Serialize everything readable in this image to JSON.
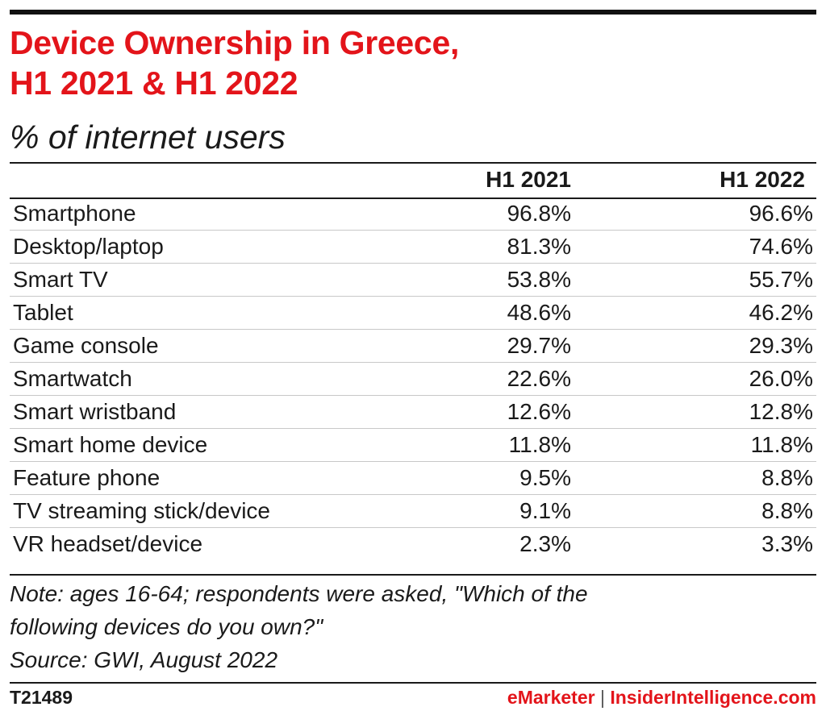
{
  "chart_data": {
    "type": "table",
    "title_line1": "Device Ownership in Greece,",
    "title_line2": "H1 2021 & H1 2022",
    "subtitle": "% of internet users",
    "columns": [
      "",
      "H1 2021",
      "H1 2022"
    ],
    "rows": [
      {
        "label": "Smartphone",
        "h1_2021": "96.8%",
        "h1_2022": "96.6%"
      },
      {
        "label": "Desktop/laptop",
        "h1_2021": "81.3%",
        "h1_2022": "74.6%"
      },
      {
        "label": "Smart TV",
        "h1_2021": "53.8%",
        "h1_2022": "55.7%"
      },
      {
        "label": "Tablet",
        "h1_2021": "48.6%",
        "h1_2022": "46.2%"
      },
      {
        "label": "Game console",
        "h1_2021": "29.7%",
        "h1_2022": "29.3%"
      },
      {
        "label": "Smartwatch",
        "h1_2021": "22.6%",
        "h1_2022": "26.0%"
      },
      {
        "label": "Smart wristband",
        "h1_2021": "12.6%",
        "h1_2022": "12.8%"
      },
      {
        "label": "Smart home device",
        "h1_2021": "11.8%",
        "h1_2022": "11.8%"
      },
      {
        "label": "Feature phone",
        "h1_2021": "9.5%",
        "h1_2022": "8.8%"
      },
      {
        "label": "TV streaming stick/device",
        "h1_2021": "9.1%",
        "h1_2022": "8.8%"
      },
      {
        "label": "VR headset/device",
        "h1_2021": "2.3%",
        "h1_2022": "3.3%"
      }
    ],
    "note_line1": "Note: ages 16-64; respondents were asked, \"Which of the",
    "note_line2": "following devices do you own?\"",
    "source": "Source: GWI, August 2022"
  },
  "footer": {
    "chart_id": "T21489",
    "brand_emarketer": "eMarketer",
    "brand_separator": "|",
    "brand_insider": "InsiderIntelligence.com"
  },
  "colors": {
    "title": "#e3141a",
    "text": "#1a1a1a",
    "rule": "#111111"
  }
}
